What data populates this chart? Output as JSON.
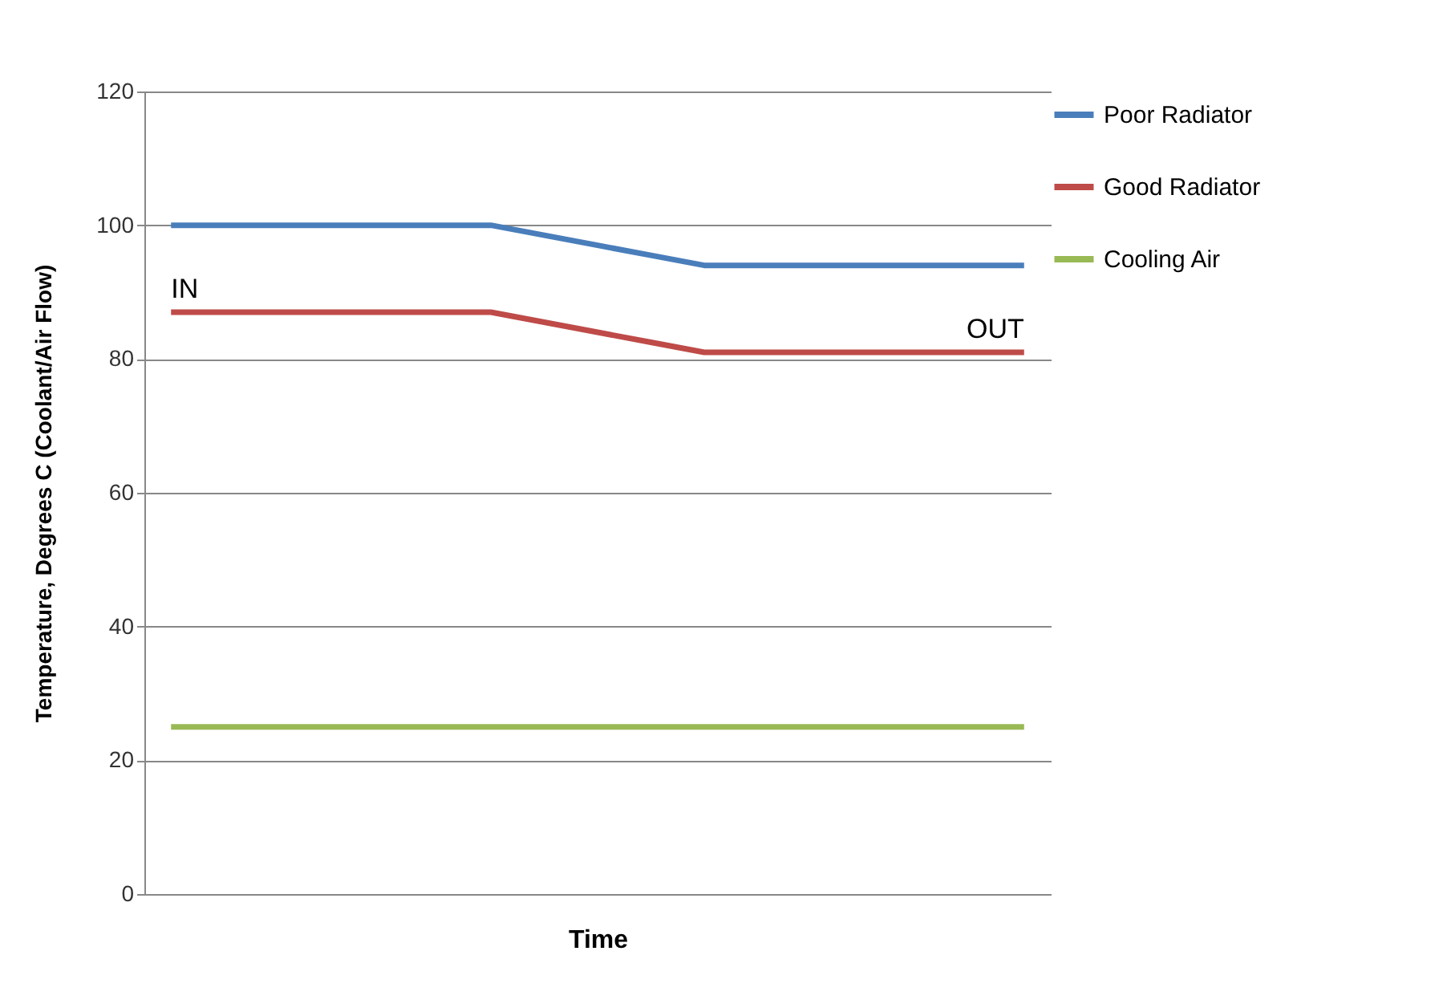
{
  "chart_data": {
    "type": "line",
    "xlabel": "Time",
    "ylabel": "Temperature, Degrees C (Coolant/Air Flow)",
    "categories": [
      null,
      null,
      null,
      null,
      null,
      null,
      null,
      null,
      null,
      null,
      null,
      null,
      null,
      null,
      null,
      null,
      null
    ],
    "series": [
      {
        "name": "Poor Radiator",
        "color": "#4a7ebb",
        "values": [
          100,
          100,
          100,
          100,
          100,
          100,
          100,
          98.5,
          97,
          95.5,
          94,
          94,
          94,
          94,
          94,
          94,
          94
        ]
      },
      {
        "name": "Good Radiator",
        "color": "#be4b48",
        "values": [
          87,
          87,
          87,
          87,
          87,
          87,
          87,
          85.5,
          84,
          82.5,
          81,
          81,
          81,
          81,
          81,
          81,
          81
        ]
      },
      {
        "name": "Cooling Air",
        "color": "#98b954",
        "values": [
          25,
          25,
          25,
          25,
          25,
          25,
          25,
          25,
          25,
          25,
          25,
          25,
          25,
          25,
          25,
          25,
          25
        ]
      }
    ],
    "annotations": [
      {
        "text": "IN",
        "y": 87
      },
      {
        "text": "OUT",
        "y": 81
      }
    ],
    "ylim": [
      0,
      120
    ],
    "yticks": [
      0,
      20,
      40,
      60,
      80,
      100,
      120
    ],
    "grid": true,
    "legend": "right",
    "marker": "none",
    "line_style": "solid"
  }
}
